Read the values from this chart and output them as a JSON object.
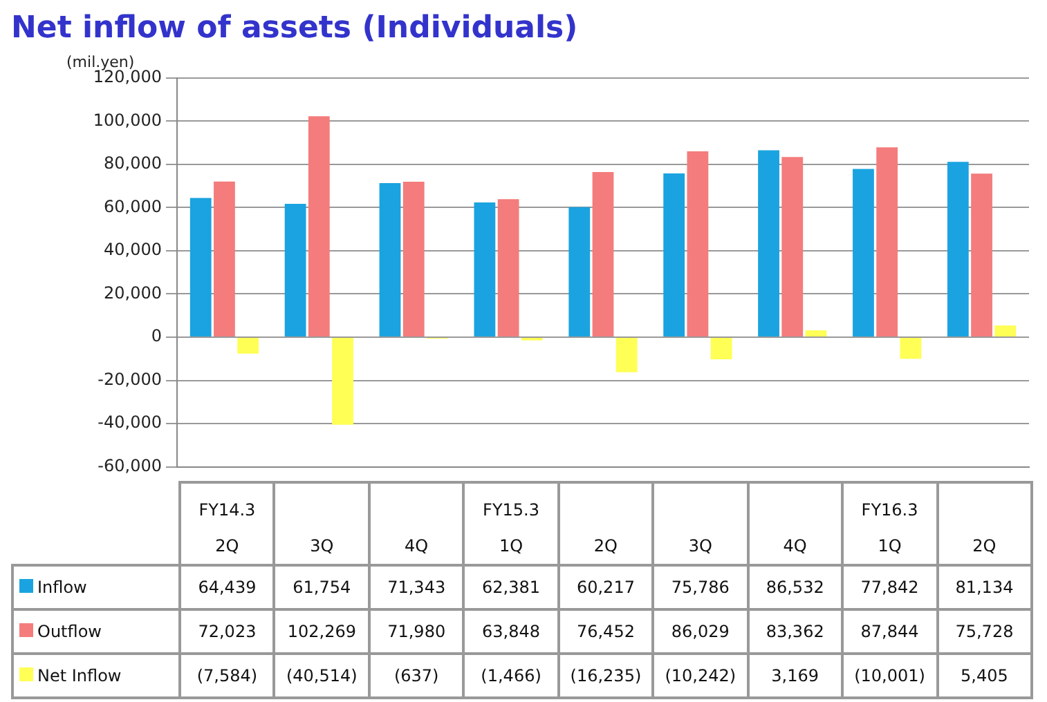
{
  "chart_data": {
    "type": "bar",
    "title": "Net inflow of assets (Individuals)",
    "ylabel": "(mil.yen)",
    "categories": [
      "FY14.3\n2Q",
      "3Q",
      "4Q",
      "FY15.3\n1Q",
      "2Q",
      "3Q",
      "4Q",
      "FY16.3\n1Q",
      "2Q"
    ],
    "series": [
      {
        "name": "Inflow",
        "color": "#1aa3e0",
        "values": [
          64439,
          61754,
          71343,
          62381,
          60217,
          75786,
          86532,
          77842,
          81134
        ],
        "value_labels": [
          "64,439",
          "61,754",
          "71,343",
          "62,381",
          "60,217",
          "75,786",
          "86,532",
          "77,842",
          "81,134"
        ]
      },
      {
        "name": "Outflow",
        "color": "#f47c7c",
        "values": [
          72023,
          102269,
          71980,
          63848,
          76452,
          86029,
          83362,
          87844,
          75728
        ],
        "value_labels": [
          "72,023",
          "102,269",
          "71,980",
          "63,848",
          "76,452",
          "86,029",
          "83,362",
          "87,844",
          "75,728"
        ]
      },
      {
        "name": "Net Inflow",
        "color": "#ffff55",
        "values": [
          -7584,
          -40514,
          -637,
          -1466,
          -16235,
          -10242,
          3169,
          -10001,
          5405
        ],
        "value_labels": [
          "(7,584)",
          "(40,514)",
          "(637)",
          "(1,466)",
          "(16,235)",
          "(10,242)",
          "3,169",
          "(10,001)",
          "5,405"
        ]
      }
    ],
    "ylim": [
      -60000,
      120000
    ],
    "yticks": [
      {
        "value": -60000,
        "label": "-60,000"
      },
      {
        "value": -40000,
        "label": "-40,000"
      },
      {
        "value": -20000,
        "label": "-20,000"
      },
      0,
      {
        "value": 20000,
        "label": "20,000"
      },
      {
        "value": 40000,
        "label": "40,000"
      },
      {
        "value": 60000,
        "label": "60,000"
      },
      {
        "value": 80000,
        "label": "80,000"
      },
      {
        "value": 100000,
        "label": "100,000"
      },
      {
        "value": 120000,
        "label": "120,000"
      }
    ],
    "grid": "y",
    "legend": "bottom"
  }
}
